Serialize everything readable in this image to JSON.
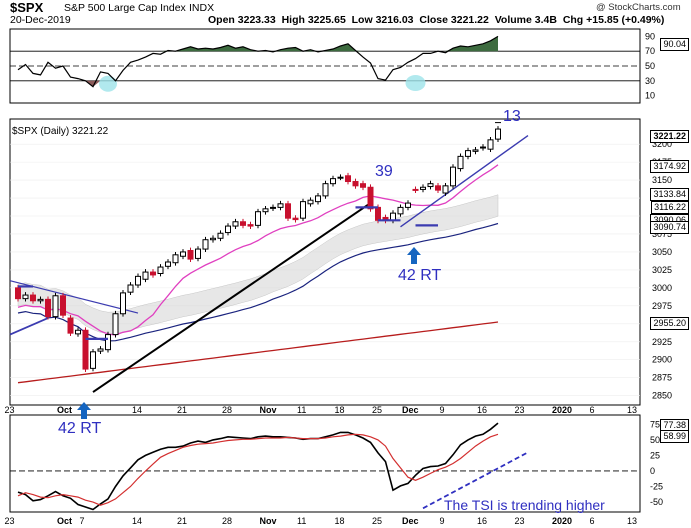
{
  "header": {
    "symbol": "$SPX",
    "name": "S&P 500 Large Cap Index",
    "exchange": "INDX",
    "date": "20-Dec-2019",
    "watermark": "@ StockCharts.com",
    "open_label": "Open",
    "open": "3223.33",
    "high_label": "High",
    "high": "3225.65",
    "low_label": "Low",
    "low": "3216.03",
    "close_label": "Close",
    "close": "3221.22",
    "volume_label": "Volume",
    "volume": "3.4B",
    "chg_label": "Chg",
    "chg": "+15.85 (+0.49%)"
  },
  "colors": {
    "candle_up": "#000000",
    "candle_down": "#c8102e",
    "ma_short": "#e040c0",
    "ma_mid": "#1a237e",
    "ma_long": "#b71c1c",
    "band_fill": "#d4d4d4",
    "rsi_fill": "#3d6b3f",
    "tsi_line": "#000000",
    "tsi_signal": "#d32f2f",
    "annotation": "#2f2fc0",
    "marker_arrow": "#1565c0",
    "highlight": "#9ee3ea"
  },
  "chart_data": [
    {
      "type": "line",
      "panel": "rsi",
      "title": "RSI",
      "value_badge": "90.04",
      "y_ticks": [
        10,
        30,
        50,
        70,
        90
      ],
      "ylim": [
        0,
        100
      ],
      "reference_lines": [
        30,
        50,
        70
      ],
      "values": [
        45,
        52,
        40,
        38,
        55,
        47,
        50,
        35,
        33,
        30,
        22,
        42,
        40,
        30,
        44,
        55,
        58,
        62,
        67,
        66,
        71,
        70,
        73,
        76,
        73,
        74,
        73,
        75,
        78,
        74,
        76,
        72,
        70,
        71,
        69,
        72,
        74,
        75,
        70,
        72,
        69,
        71,
        73,
        77,
        80,
        71,
        62,
        54,
        33,
        31,
        45,
        48,
        55,
        60,
        67,
        67,
        70,
        68,
        74,
        77,
        76,
        78,
        80,
        84,
        90
      ]
    },
    {
      "type": "candlestick",
      "panel": "price",
      "title": "$SPX (Daily) 3221.22",
      "ylim": [
        2837,
        3235
      ],
      "y_ticks": [
        2850,
        2875,
        2900,
        2925,
        2950,
        2975,
        3000,
        3025,
        3050,
        3075,
        3100,
        3125,
        3150,
        3175,
        3200
      ],
      "badges": [
        "3221.22",
        "3174.92",
        "3133.84",
        "3116.22",
        "3090.06",
        "3090.74",
        "2955.20"
      ],
      "open": [
        3000,
        2985,
        2990,
        2982,
        2984,
        2960,
        2989,
        2958,
        2936,
        2941,
        2888,
        2912,
        2914,
        2935,
        2964,
        2994,
        3004,
        3012,
        3022,
        3020,
        3030,
        3035,
        3044,
        3052,
        3041,
        3054,
        3067,
        3069,
        3077,
        3086,
        3092,
        3088,
        3087,
        3106,
        3111,
        3112,
        3117,
        3097,
        3097,
        3117,
        3120,
        3128,
        3145,
        3154,
        3156,
        3148,
        3145,
        3140,
        3112,
        3098,
        3094,
        3103,
        3112,
        3137,
        3137,
        3141,
        3142,
        3132,
        3142,
        3166,
        3183,
        3190,
        3195,
        3193,
        3207
      ],
      "close": [
        2985,
        2990,
        2982,
        2984,
        2960,
        2989,
        2962,
        2937,
        2941,
        2887,
        2911,
        2915,
        2935,
        2964,
        2993,
        3004,
        3016,
        3022,
        3018,
        3029,
        3036,
        3046,
        3050,
        3040,
        3054,
        3067,
        3069,
        3076,
        3086,
        3092,
        3087,
        3086,
        3106,
        3110,
        3112,
        3117,
        3097,
        3095,
        3120,
        3122,
        3128,
        3145,
        3152,
        3154,
        3148,
        3142,
        3140,
        3110,
        3094,
        3094,
        3104,
        3112,
        3118,
        3136,
        3140,
        3145,
        3136,
        3142,
        3168,
        3183,
        3191,
        3192,
        3196,
        3206,
        3221
      ]
    },
    {
      "type": "line",
      "panel": "tsi",
      "title": "TSI",
      "y_ticks": [
        -50,
        -25,
        0,
        25,
        50,
        75
      ],
      "ylim": [
        -66,
        90
      ],
      "value_badges": [
        "77.38",
        "58.99"
      ],
      "series": [
        {
          "name": "TSI",
          "values": [
            -34,
            -38,
            -48,
            -46,
            -40,
            -33,
            -40,
            -44,
            -54,
            -58,
            -62,
            -53,
            -45,
            -25,
            -8,
            5,
            18,
            25,
            30,
            35,
            38,
            38,
            40,
            45,
            48,
            46,
            50,
            52,
            55,
            54,
            53,
            52,
            55,
            56,
            55,
            55,
            54,
            53,
            51,
            52,
            52,
            55,
            58,
            62,
            62,
            58,
            53,
            46,
            29,
            15,
            -31,
            -24,
            -20,
            -7,
            4,
            7,
            8,
            12,
            26,
            42,
            50,
            56,
            59,
            67,
            77
          ]
        },
        {
          "name": "Signal",
          "values": [
            -40,
            -35,
            -38,
            -42,
            -43,
            -40,
            -38,
            -40,
            -42,
            -47,
            -50,
            -55,
            -51,
            -45,
            -35,
            -25,
            -12,
            0,
            11,
            22,
            28,
            33,
            38,
            41,
            43,
            44,
            45,
            47,
            49,
            50,
            51,
            51,
            52,
            53,
            53,
            53,
            54,
            53,
            52,
            52,
            52,
            53,
            55,
            56,
            58,
            59,
            58,
            55,
            50,
            40,
            20,
            5,
            -10,
            -15,
            -10,
            -4,
            2,
            6,
            12,
            20,
            30,
            40,
            48,
            55,
            59
          ]
        }
      ]
    }
  ],
  "x_axis_labels": [
    "23",
    "Oct",
    "7",
    "14",
    "21",
    "28",
    "Nov",
    "11",
    "18",
    "25",
    "Dec",
    "9",
    "16",
    "23",
    "2020",
    "6",
    "13"
  ],
  "annotations": {
    "left_label": "42 RT",
    "mid_label": "42 RT",
    "count_39": "39",
    "count_13": "13",
    "tsi_note": "The TSI is trending higher"
  }
}
